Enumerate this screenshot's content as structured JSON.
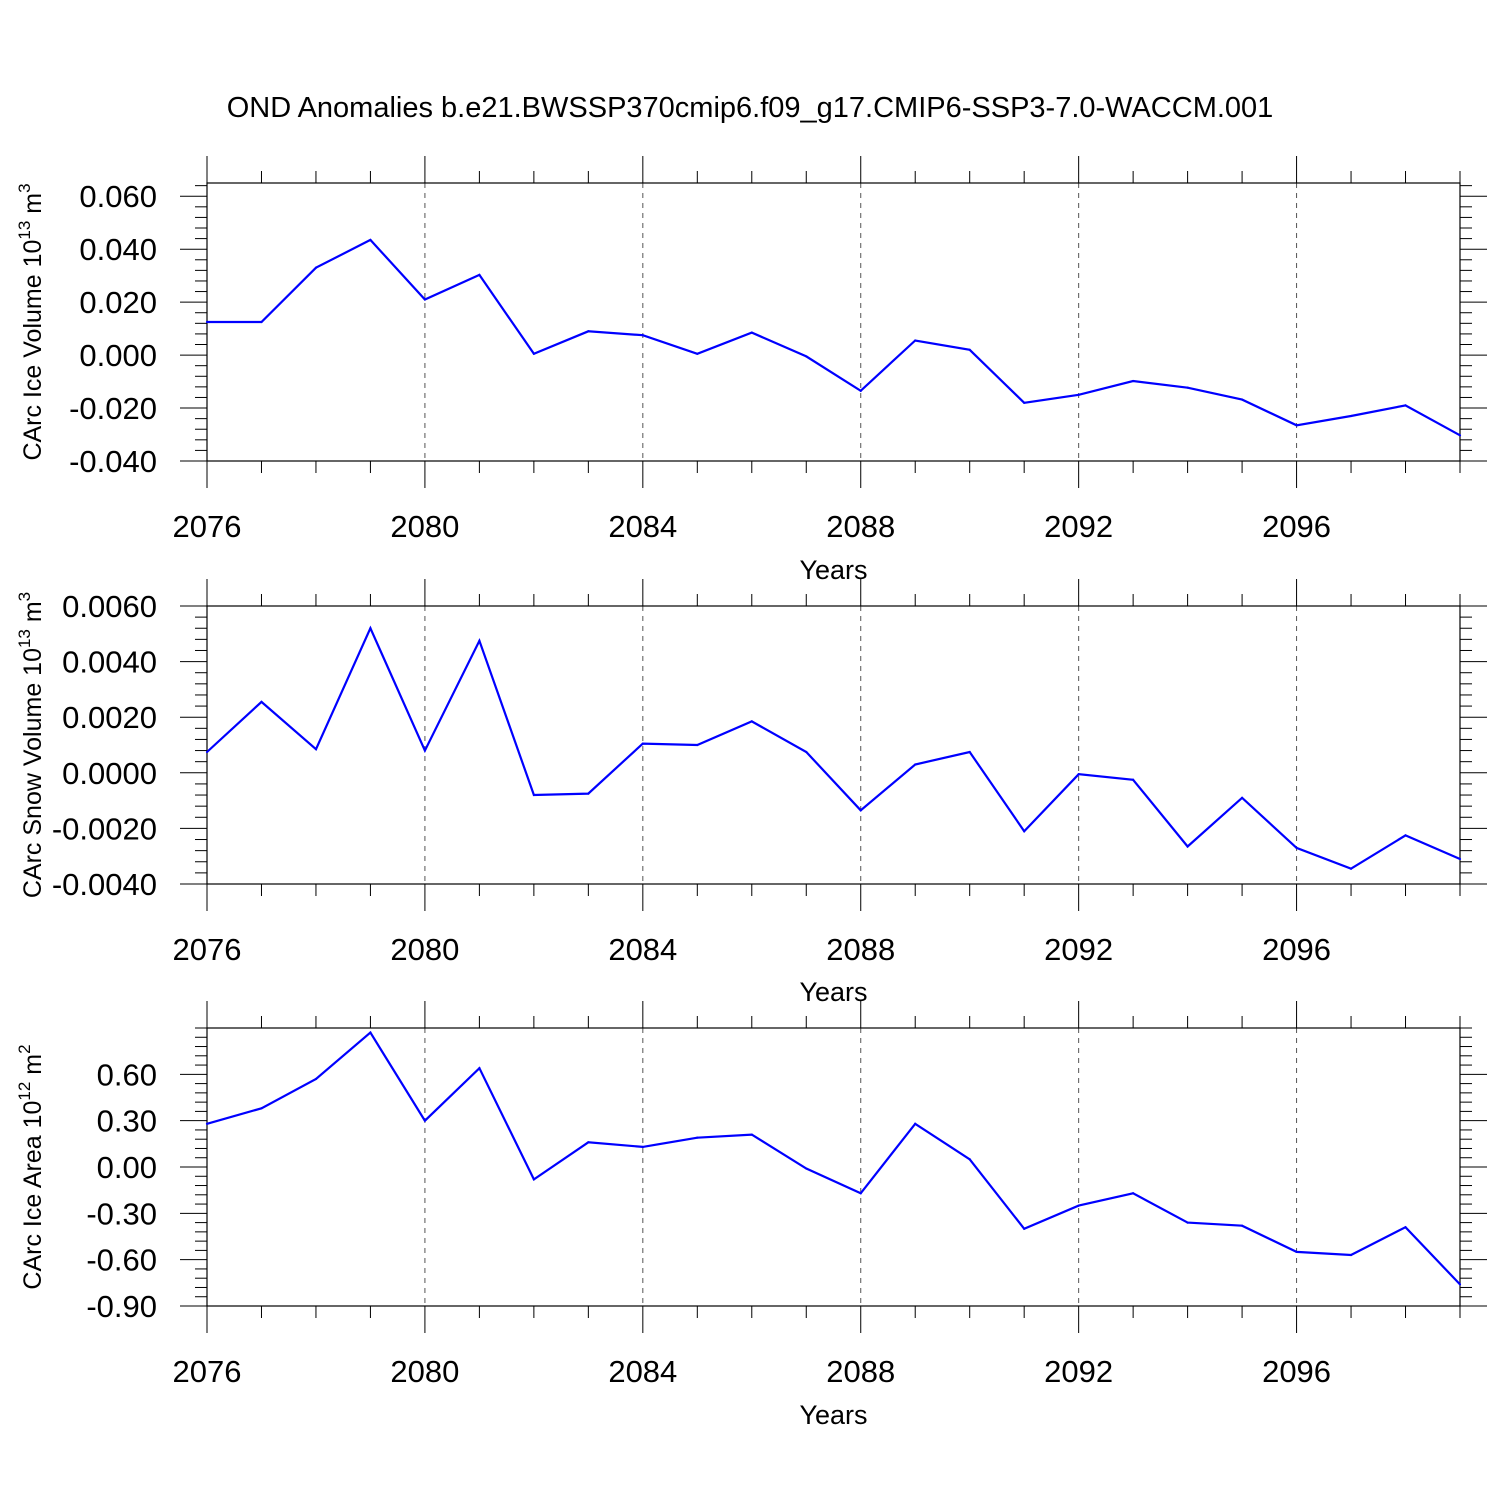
{
  "title": "OND Anomalies b.e21.BWSSP370cmip6.f09_g17.CMIP6-SSP3-7.0-WACCM.001",
  "colors": {
    "line": "#0000ff",
    "axis": "#000000"
  },
  "chart_data": [
    {
      "type": "line",
      "ylabel_main": "CArc Ice Volume 10",
      "ylabel_exp": "13",
      "ylabel_unit": " m",
      "ylabel_unit_exp": "3",
      "xlabel": "Years",
      "xlim": [
        2076,
        2099
      ],
      "ylim": [
        -0.04,
        0.065
      ],
      "xticks": [
        "2076",
        "2080",
        "2084",
        "2088",
        "2092",
        "2096"
      ],
      "yticks": [
        {
          "v": 0.06,
          "label": "0.060"
        },
        {
          "v": 0.04,
          "label": "0.040"
        },
        {
          "v": 0.02,
          "label": "0.020"
        },
        {
          "v": 0.0,
          "label": "0.000"
        },
        {
          "v": -0.02,
          "label": "-0.020"
        },
        {
          "v": -0.04,
          "label": "-0.040"
        }
      ],
      "x": [
        2076,
        2077,
        2078,
        2079,
        2080,
        2081,
        2082,
        2083,
        2084,
        2085,
        2086,
        2087,
        2088,
        2089,
        2090,
        2091,
        2092,
        2093,
        2094,
        2095,
        2096,
        2097,
        2098,
        2099
      ],
      "values": [
        0.0125,
        0.0125,
        0.033,
        0.0435,
        0.021,
        0.0303,
        0.0005,
        0.009,
        0.0075,
        0.0005,
        0.0085,
        -0.0005,
        -0.0135,
        0.0055,
        0.002,
        -0.018,
        -0.015,
        -0.0098,
        -0.0123,
        -0.0168,
        -0.0265,
        -0.023,
        -0.019,
        -0.0303
      ]
    },
    {
      "type": "line",
      "ylabel_main": "CArc Snow Volume 10",
      "ylabel_exp": "13",
      "ylabel_unit": " m",
      "ylabel_unit_exp": "3",
      "xlabel": "Years",
      "xlim": [
        2076,
        2099
      ],
      "ylim": [
        -0.004,
        0.006
      ],
      "xticks": [
        "2076",
        "2080",
        "2084",
        "2088",
        "2092",
        "2096"
      ],
      "yticks": [
        {
          "v": 0.006,
          "label": "0.0060"
        },
        {
          "v": 0.004,
          "label": "0.0040"
        },
        {
          "v": 0.002,
          "label": "0.0020"
        },
        {
          "v": 0.0,
          "label": "0.0000"
        },
        {
          "v": -0.002,
          "label": "-0.0020"
        },
        {
          "v": -0.004,
          "label": "-0.0040"
        }
      ],
      "x": [
        2076,
        2077,
        2078,
        2079,
        2080,
        2081,
        2082,
        2083,
        2084,
        2085,
        2086,
        2087,
        2088,
        2089,
        2090,
        2091,
        2092,
        2093,
        2094,
        2095,
        2096,
        2097,
        2098,
        2099
      ],
      "values": [
        0.00075,
        0.00255,
        0.00085,
        0.0052,
        0.0008,
        0.00475,
        -0.0008,
        -0.00075,
        0.00105,
        0.001,
        0.00185,
        0.00075,
        -0.00135,
        0.0003,
        0.00075,
        -0.0021,
        -5e-05,
        -0.00025,
        -0.00265,
        -0.0009,
        -0.0027,
        -0.00345,
        -0.00225,
        -0.0031
      ]
    },
    {
      "type": "line",
      "ylabel_main": "CArc Ice Area 10",
      "ylabel_exp": "12",
      "ylabel_unit": " m",
      "ylabel_unit_exp": "2",
      "xlabel": "Years",
      "xlim": [
        2076,
        2099
      ],
      "ylim": [
        -0.9,
        0.9
      ],
      "xticks": [
        "2076",
        "2080",
        "2084",
        "2088",
        "2092",
        "2096"
      ],
      "yticks": [
        {
          "v": 0.6,
          "label": "0.60"
        },
        {
          "v": 0.3,
          "label": "0.30"
        },
        {
          "v": 0.0,
          "label": "0.00"
        },
        {
          "v": -0.3,
          "label": "-0.30"
        },
        {
          "v": -0.6,
          "label": "-0.60"
        },
        {
          "v": -0.9,
          "label": "-0.90"
        }
      ],
      "x": [
        2076,
        2077,
        2078,
        2079,
        2080,
        2081,
        2082,
        2083,
        2084,
        2085,
        2086,
        2087,
        2088,
        2089,
        2090,
        2091,
        2092,
        2093,
        2094,
        2095,
        2096,
        2097,
        2098,
        2099
      ],
      "values": [
        0.28,
        0.38,
        0.57,
        0.87,
        0.3,
        0.64,
        -0.08,
        0.16,
        0.13,
        0.19,
        0.21,
        -0.01,
        -0.17,
        0.28,
        0.05,
        -0.4,
        -0.25,
        -0.17,
        -0.36,
        -0.38,
        -0.55,
        -0.57,
        -0.39,
        -0.76
      ]
    }
  ]
}
